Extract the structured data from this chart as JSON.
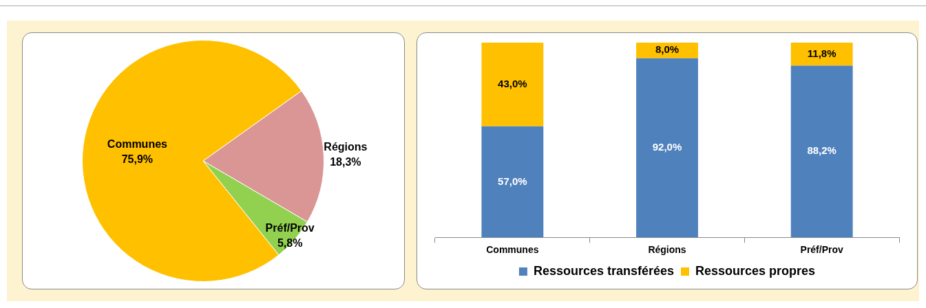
{
  "chart_data": [
    {
      "type": "pie",
      "categories": [
        "Régions",
        "Préf/Prov",
        "Communes"
      ],
      "values": [
        18.3,
        5.8,
        75.9
      ],
      "colors": [
        "#d99694",
        "#92d050",
        "#ffc000"
      ],
      "value_labels": [
        "18,3%",
        "5,8%",
        "75,9%"
      ],
      "legend": false
    },
    {
      "type": "bar",
      "stacked": true,
      "categories": [
        "Communes",
        "Régions",
        "Préf/Prov"
      ],
      "legend": "bottom",
      "series": [
        {
          "name": "Ressources transférées",
          "color": "#4f81bd",
          "values": [
            57.0,
            92.0,
            88.2
          ],
          "value_labels": [
            "57,0%",
            "92,0%",
            "88,2%"
          ]
        },
        {
          "name": "Ressources propres",
          "color": "#ffc000",
          "values": [
            43.0,
            8.0,
            11.8
          ],
          "value_labels": [
            "43,0%",
            "8,0%",
            "11,8%"
          ]
        }
      ]
    }
  ]
}
